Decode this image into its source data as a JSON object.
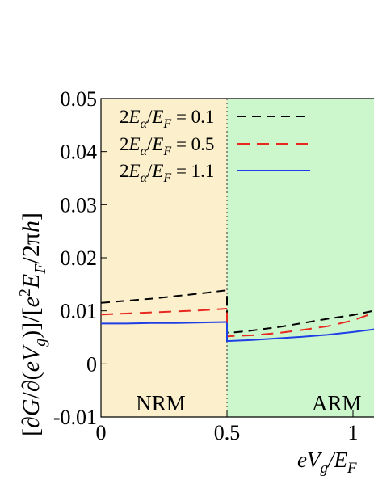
{
  "chart_data": {
    "type": "line",
    "xlabel": "eV_g/E_F",
    "ylabel": "[∂G/∂(eV_g)]/[e²E_F/2πh]",
    "xlim": [
      0,
      1.1
    ],
    "ylim": [
      -0.01,
      0.05
    ],
    "x_ticks": [
      "0",
      "0.5",
      "1"
    ],
    "y_ticks": [
      "-0.01",
      "0",
      "0.01",
      "0.02",
      "0.03",
      "0.04",
      "0.05"
    ],
    "regions": [
      {
        "label": "NRM",
        "x_range": [
          0,
          0.5
        ],
        "color": "#fbefcc"
      },
      {
        "label": "ARM",
        "x_range": [
          0.5,
          1.1
        ],
        "color": "#ccf6cc"
      }
    ],
    "boundary_x": 0.5,
    "legend_position": "top-left",
    "series": [
      {
        "name": "2E_α/E_F = 0.1",
        "color": "#000000",
        "dash": "dashed",
        "segments": [
          {
            "x": [
              0,
              0.1,
              0.2,
              0.3,
              0.4,
              0.5
            ],
            "y": [
              0.0115,
              0.0119,
              0.0123,
              0.0128,
              0.0133,
              0.0139
            ]
          },
          {
            "x": [
              0.5,
              0.5,
              0.52,
              0.6,
              0.7,
              0.8,
              0.9,
              1.0,
              1.1
            ],
            "y": [
              0.0128,
              0.0059,
              0.0059,
              0.0063,
              0.0069,
              0.0077,
              0.0085,
              0.0092,
              0.0102
            ]
          }
        ]
      },
      {
        "name": "2E_α/E_F = 0.5",
        "color": "#e8281e",
        "dash": "dashed-long",
        "segments": [
          {
            "x": [
              0,
              0.1,
              0.2,
              0.3,
              0.4,
              0.5
            ],
            "y": [
              0.0093,
              0.0095,
              0.0097,
              0.0099,
              0.0101,
              0.0104
            ]
          },
          {
            "x": [
              0.5,
              0.5,
              0.55,
              0.6,
              0.7,
              0.8,
              0.9,
              1.0,
              1.1
            ],
            "y": [
              0.0097,
              0.0052,
              0.0053,
              0.0054,
              0.0058,
              0.0064,
              0.0071,
              0.0082,
              0.0099
            ]
          }
        ]
      },
      {
        "name": "2E_α/E_F = 1.1",
        "color": "#1f3fe6",
        "dash": "solid",
        "segments": [
          {
            "x": [
              0,
              0.1,
              0.2,
              0.3,
              0.4,
              0.5
            ],
            "y": [
              0.0076,
              0.0076,
              0.0077,
              0.0077,
              0.0078,
              0.0079
            ]
          },
          {
            "x": [
              0.5,
              0.5,
              0.6,
              0.7,
              0.8,
              0.9,
              1.0,
              1.1
            ],
            "y": [
              0.0077,
              0.0043,
              0.0045,
              0.0048,
              0.0051,
              0.0055,
              0.006,
              0.0066
            ]
          }
        ]
      }
    ]
  }
}
